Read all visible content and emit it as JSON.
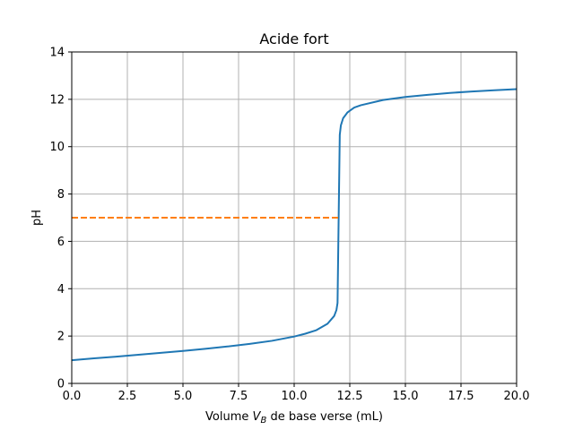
{
  "chart_data": {
    "type": "line",
    "title": "Acide fort",
    "xlabel": {
      "prefix": "Volume ",
      "var": "V",
      "sub": "B",
      "suffix": " de base verse (mL)"
    },
    "ylabel": "pH",
    "xlim": [
      0,
      20
    ],
    "ylim": [
      0,
      14
    ],
    "xticks": [
      0,
      2.5,
      5,
      7.5,
      10,
      12.5,
      15,
      17.5,
      20
    ],
    "xtick_labels": [
      "0.0",
      "2.5",
      "5.0",
      "7.5",
      "10.0",
      "12.5",
      "15.0",
      "17.5",
      "20.0"
    ],
    "yticks": [
      0,
      2,
      4,
      6,
      8,
      10,
      12,
      14
    ],
    "ytick_labels": [
      "0",
      "2",
      "4",
      "6",
      "8",
      "10",
      "12",
      "14"
    ],
    "grid": true,
    "series": [
      {
        "color": "#1f77b4",
        "style": "solid",
        "x": [
          0,
          1,
          2,
          3,
          4,
          5,
          6,
          7,
          8,
          9,
          10,
          10.5,
          11,
          11.5,
          11.8,
          11.9,
          11.95,
          12.0,
          12.05,
          12.1,
          12.2,
          12.4,
          12.7,
          13,
          14,
          15,
          16,
          17,
          18,
          19,
          20
        ],
        "y": [
          0.98,
          1.06,
          1.13,
          1.21,
          1.29,
          1.37,
          1.46,
          1.56,
          1.67,
          1.8,
          1.98,
          2.1,
          2.25,
          2.52,
          2.85,
          3.1,
          3.4,
          7.0,
          10.5,
          10.9,
          11.2,
          11.45,
          11.65,
          11.75,
          11.97,
          12.1,
          12.19,
          12.27,
          12.33,
          12.38,
          12.43
        ]
      },
      {
        "color": "#ff7f0e",
        "style": "dashed",
        "x": [
          0,
          12
        ],
        "y": [
          7,
          7
        ]
      }
    ]
  }
}
